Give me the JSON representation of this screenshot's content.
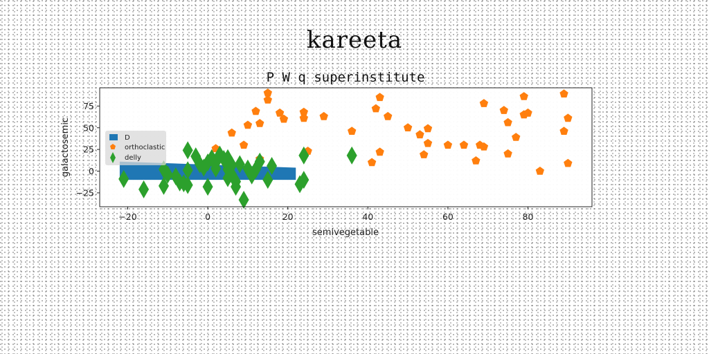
{
  "figure": {
    "suptitle": "kareeta"
  },
  "chart_data": {
    "type": "scatter",
    "title": "P W q superinstitute",
    "xlabel": "semivegetable",
    "ylabel": "galactosemic",
    "xlim": [
      -27,
      96
    ],
    "ylim": [
      -41,
      96
    ],
    "xticks": [
      -20,
      0,
      20,
      40,
      60,
      80
    ],
    "yticks": [
      -25,
      0,
      25,
      50,
      75
    ],
    "xtick_labels": [
      "−20",
      "0",
      "20",
      "40",
      "60",
      "80"
    ],
    "ytick_labels": [
      "−25",
      "0",
      "25",
      "50",
      "75"
    ],
    "grid": false,
    "legend_position": "center-left",
    "colors": {
      "D": "#1f77b4",
      "orthoclastic": "#ff7f0e",
      "delly": "#2ca02c"
    },
    "series": [
      {
        "name": "D",
        "kind": "bar",
        "x_start": -22,
        "x_end": 22,
        "y_low": -10,
        "y_high": 12,
        "y_top_at_start": 11,
        "y_top_at_end": 4
      },
      {
        "name": "orthoclastic",
        "kind": "pentagon",
        "points": [
          [
            2,
            26
          ],
          [
            6,
            44
          ],
          [
            9,
            30
          ],
          [
            10,
            53
          ],
          [
            12,
            69
          ],
          [
            13,
            55
          ],
          [
            13,
            14
          ],
          [
            15,
            82
          ],
          [
            15,
            90
          ],
          [
            18,
            67
          ],
          [
            19,
            60
          ],
          [
            24,
            61
          ],
          [
            24,
            68
          ],
          [
            25,
            23
          ],
          [
            29,
            63
          ],
          [
            36,
            46
          ],
          [
            41,
            10
          ],
          [
            42,
            72
          ],
          [
            43,
            22
          ],
          [
            43,
            85
          ],
          [
            45,
            63
          ],
          [
            50,
            50
          ],
          [
            53,
            42
          ],
          [
            54,
            19
          ],
          [
            55,
            32
          ],
          [
            55,
            49
          ],
          [
            60,
            30
          ],
          [
            64,
            30
          ],
          [
            67,
            12
          ],
          [
            68,
            30
          ],
          [
            69,
            28
          ],
          [
            69,
            78
          ],
          [
            74,
            70
          ],
          [
            75,
            56
          ],
          [
            75,
            20
          ],
          [
            77,
            39
          ],
          [
            79,
            65
          ],
          [
            79,
            86
          ],
          [
            80,
            67
          ],
          [
            83,
            0
          ],
          [
            89,
            89
          ],
          [
            89,
            46
          ],
          [
            90,
            61
          ],
          [
            90,
            9
          ]
        ]
      },
      {
        "name": "delly",
        "kind": "thin_diamond",
        "points": [
          [
            -21,
            -9
          ],
          [
            -16,
            -21
          ],
          [
            -11,
            -17
          ],
          [
            -11,
            2
          ],
          [
            -10,
            -4
          ],
          [
            -8,
            -6
          ],
          [
            -7,
            -13
          ],
          [
            -6,
            -14
          ],
          [
            -5,
            1
          ],
          [
            -5,
            -16
          ],
          [
            -5,
            24
          ],
          [
            -3,
            17
          ],
          [
            -2,
            8
          ],
          [
            -1,
            4
          ],
          [
            0,
            10
          ],
          [
            0,
            -18
          ],
          [
            1,
            15
          ],
          [
            2,
            10
          ],
          [
            2,
            3
          ],
          [
            3,
            19
          ],
          [
            4,
            14
          ],
          [
            5,
            -8
          ],
          [
            5,
            2
          ],
          [
            5,
            15
          ],
          [
            6,
            7
          ],
          [
            6,
            -4
          ],
          [
            7,
            -12
          ],
          [
            7,
            -18
          ],
          [
            8,
            8
          ],
          [
            9,
            -33
          ],
          [
            10,
            3
          ],
          [
            11,
            -5
          ],
          [
            12,
            2
          ],
          [
            13,
            11
          ],
          [
            15,
            -10
          ],
          [
            16,
            6
          ],
          [
            23,
            -15
          ],
          [
            24,
            -10
          ],
          [
            24,
            18
          ],
          [
            36,
            18
          ]
        ]
      }
    ]
  }
}
